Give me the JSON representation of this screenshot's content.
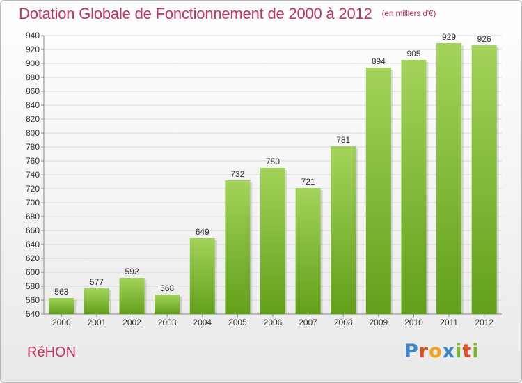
{
  "title": "Dotation Globale de Fonctionnement de 2000 à 2012",
  "unit": "(en milliers d'€)",
  "place": "RéHON",
  "logo": {
    "text": "Proxiti",
    "letters": [
      {
        "ch": "P",
        "color": "#3a86c8"
      },
      {
        "ch": "r",
        "color": "#e2491f"
      },
      {
        "ch": "o",
        "color": "#f2a21a"
      },
      {
        "ch": "x",
        "color": "#3a86c8"
      },
      {
        "ch": "i",
        "color": "#7cb82f"
      },
      {
        "ch": "t",
        "color": "#e2491f"
      },
      {
        "ch": "i",
        "color": "#7cb82f"
      }
    ]
  },
  "colors": {
    "bar_light": "#a3d35a",
    "bar_dark": "#62a01a",
    "title": "#c4335c",
    "grid": "#d9d9d9"
  },
  "chart_data": {
    "type": "bar",
    "title": "Dotation Globale de Fonctionnement de 2000 à 2012",
    "categories": [
      "2000",
      "2001",
      "2002",
      "2003",
      "2004",
      "2005",
      "2006",
      "2007",
      "2008",
      "2009",
      "2010",
      "2011",
      "2012"
    ],
    "values": [
      563,
      577,
      592,
      568,
      649,
      732,
      750,
      721,
      781,
      894,
      905,
      929,
      926
    ],
    "ylim": [
      540,
      940
    ],
    "yticks": [
      540,
      560,
      580,
      600,
      620,
      640,
      660,
      680,
      700,
      720,
      740,
      760,
      780,
      800,
      820,
      840,
      860,
      880,
      900,
      920,
      940
    ],
    "grid": true,
    "legend": "none",
    "xlabel": "",
    "ylabel": ""
  }
}
